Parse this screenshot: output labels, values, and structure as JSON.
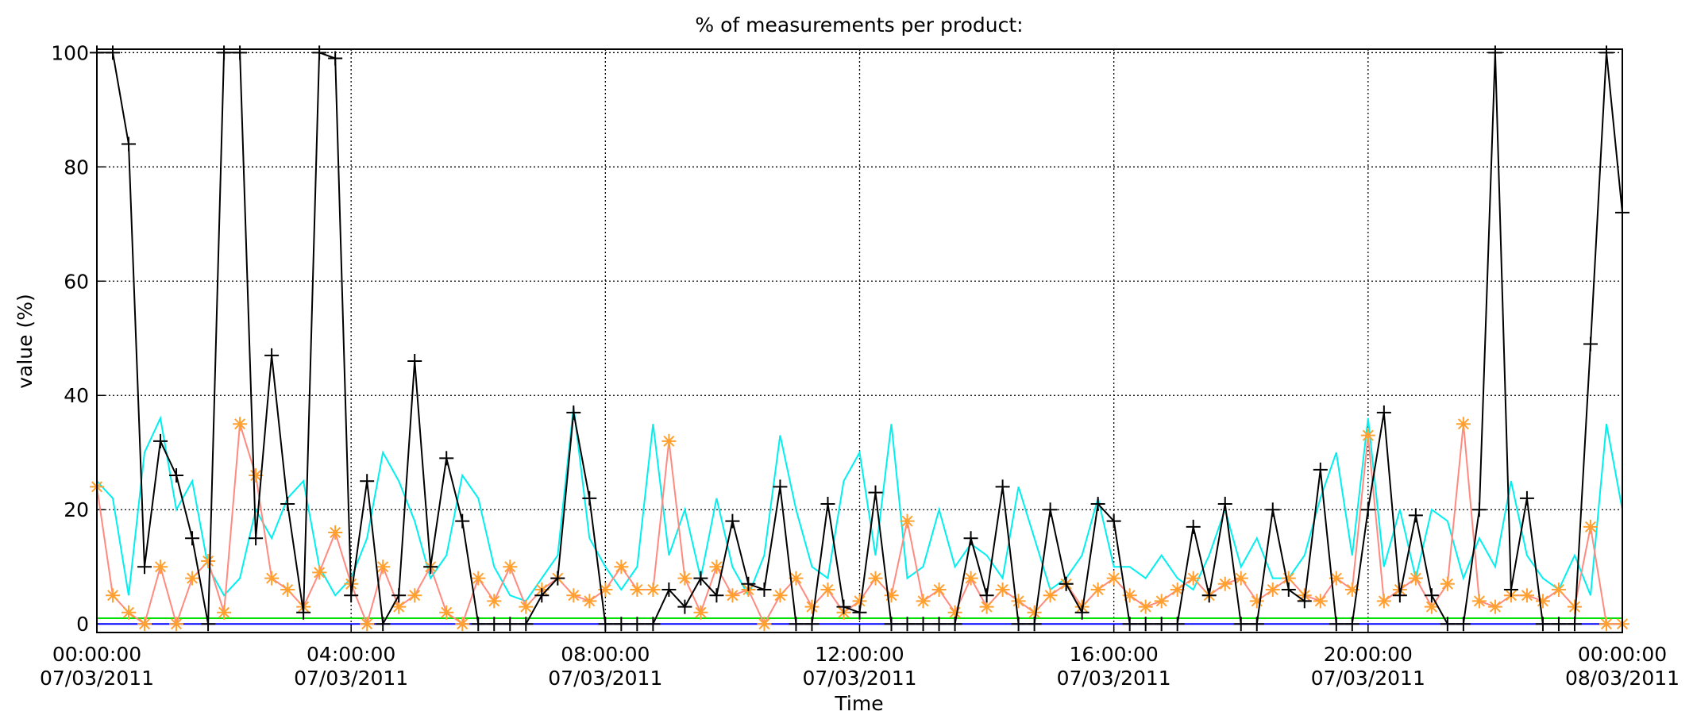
{
  "chart_data": {
    "type": "line",
    "title": "% of measurements per product:",
    "y_label": "value (%)",
    "x_label": "Time",
    "x": [
      0,
      0.25,
      0.5,
      0.75,
      1,
      1.25,
      1.5,
      1.75,
      2,
      2.25,
      2.5,
      2.75,
      3,
      3.25,
      3.5,
      3.75,
      4,
      4.25,
      4.5,
      4.75,
      5,
      5.25,
      5.5,
      5.75,
      6,
      6.25,
      6.5,
      6.75,
      7,
      7.25,
      7.5,
      7.75,
      8,
      8.25,
      8.5,
      8.75,
      9,
      9.25,
      9.5,
      9.75,
      10,
      10.25,
      10.5,
      10.75,
      11,
      11.25,
      11.5,
      11.75,
      12,
      12.25,
      12.5,
      12.75,
      13,
      13.25,
      13.5,
      13.75,
      14,
      14.25,
      14.5,
      14.75,
      15,
      15.25,
      15.5,
      15.75,
      16,
      16.25,
      16.5,
      16.75,
      17,
      17.25,
      17.5,
      17.75,
      18,
      18.25,
      18.5,
      18.75,
      19,
      19.25,
      19.5,
      19.75,
      20,
      20.25,
      20.5,
      20.75,
      21,
      21.25,
      21.5,
      21.75,
      22,
      22.25,
      22.5,
      22.75,
      23,
      23.25,
      23.5,
      23.75,
      24
    ],
    "xlim": [
      0,
      24
    ],
    "xticks": [
      {
        "value": 0,
        "label": "00:00:00\n07/03/2011"
      },
      {
        "value": 4,
        "label": "04:00:00\n07/03/2011"
      },
      {
        "value": 8,
        "label": "08:00:00\n07/03/2011"
      },
      {
        "value": 12,
        "label": "12:00:00\n07/03/2011"
      },
      {
        "value": 16,
        "label": "16:00:00\n07/03/2011"
      },
      {
        "value": 20,
        "label": "20:00:00\n07/03/2011"
      },
      {
        "value": 24,
        "label": "00:00:00\n08/03/2011"
      }
    ],
    "ylim": [
      -1.5,
      100.6
    ],
    "yticks": [
      0,
      20,
      40,
      60,
      80,
      100
    ],
    "grid": true,
    "series": [
      {
        "color": "#00e000",
        "marker": null,
        "values": [
          1,
          1,
          1,
          1,
          1,
          1,
          1,
          1,
          1,
          1,
          1,
          1,
          1,
          1,
          1,
          1,
          1,
          1,
          1,
          1,
          1,
          1,
          1,
          1,
          1,
          1,
          1,
          1,
          1,
          1,
          1,
          1,
          1,
          1,
          1,
          1,
          1,
          1,
          1,
          1,
          1,
          1,
          1,
          1,
          1,
          1,
          1,
          1,
          1,
          1,
          1,
          1,
          1,
          1,
          1,
          1,
          1,
          1,
          1,
          1,
          1,
          1,
          1,
          1,
          1,
          1,
          1,
          1,
          1,
          1,
          1,
          1,
          1,
          1,
          1,
          1,
          1,
          1,
          1,
          1,
          1,
          1,
          1,
          1,
          1,
          1,
          1,
          1,
          1,
          1,
          1,
          1,
          1,
          1,
          1,
          1,
          1
        ]
      },
      {
        "color": "#0000ff",
        "marker": null,
        "values": [
          0,
          0,
          0,
          0,
          0,
          0,
          0,
          0,
          0,
          0,
          0,
          0,
          0,
          0,
          0,
          0,
          0,
          0,
          0,
          0,
          0,
          0,
          0,
          0,
          0,
          0,
          0,
          0,
          0,
          0,
          0,
          0,
          0,
          0,
          0,
          0,
          0,
          0,
          0,
          0,
          0,
          0,
          0,
          0,
          0,
          0,
          0,
          0,
          0,
          0,
          0,
          0,
          0,
          0,
          0,
          0,
          0,
          0,
          0,
          0,
          0,
          0,
          0,
          0,
          0,
          0,
          0,
          0,
          0,
          0,
          0,
          0,
          0,
          0,
          0,
          0,
          0,
          0,
          0,
          0,
          0,
          0,
          0,
          0,
          0,
          0,
          0,
          0,
          0,
          0,
          0,
          0,
          0,
          0,
          0,
          0,
          0
        ]
      },
      {
        "color": "#00f0f0",
        "marker": null,
        "values": [
          25,
          22,
          5,
          30,
          36,
          20,
          25,
          10,
          5,
          8,
          20,
          15,
          22,
          25,
          10,
          5,
          8,
          15,
          30,
          25,
          18,
          8,
          12,
          26,
          22,
          10,
          5,
          4,
          8,
          12,
          38,
          15,
          10,
          6,
          10,
          35,
          12,
          20,
          8,
          22,
          10,
          5,
          12,
          33,
          20,
          10,
          8,
          25,
          30,
          12,
          35,
          8,
          10,
          20,
          10,
          14,
          12,
          8,
          24,
          15,
          6,
          8,
          12,
          22,
          10,
          10,
          8,
          12,
          8,
          6,
          12,
          20,
          10,
          15,
          8,
          8,
          12,
          22,
          30,
          12,
          36,
          10,
          20,
          8,
          20,
          18,
          8,
          15,
          10,
          25,
          12,
          8,
          6,
          12,
          5,
          35,
          20
        ]
      },
      {
        "color": "#ff8a80",
        "marker": "asterisk",
        "marker_color": "#ffa030",
        "values": [
          24,
          5,
          2,
          0,
          10,
          0,
          8,
          11,
          2,
          35,
          26,
          8,
          6,
          3,
          9,
          16,
          7,
          0,
          10,
          3,
          5,
          10,
          2,
          0,
          8,
          4,
          10,
          3,
          6,
          8,
          5,
          4,
          6,
          10,
          6,
          6,
          32,
          8,
          2,
          10,
          5,
          6,
          0,
          5,
          8,
          3,
          6,
          2,
          4,
          8,
          5,
          18,
          4,
          6,
          2,
          8,
          3,
          6,
          4,
          2,
          5,
          7,
          3,
          6,
          8,
          5,
          3,
          4,
          6,
          8,
          5,
          7,
          8,
          4,
          6,
          8,
          5,
          4,
          8,
          6,
          33,
          4,
          6,
          8,
          3,
          7,
          35,
          4,
          3,
          5,
          5,
          4,
          6,
          3,
          17,
          0,
          0
        ]
      },
      {
        "color": "#000000",
        "marker": "plus",
        "marker_color": "#000000",
        "values": [
          100,
          100,
          84,
          10,
          32,
          26,
          15,
          0,
          100,
          100,
          15,
          47,
          21,
          2,
          100,
          99,
          5,
          25,
          0,
          5,
          46,
          10,
          29,
          18,
          0,
          0,
          0,
          0,
          5,
          8,
          37,
          22,
          0,
          0,
          0,
          0,
          6,
          3,
          8,
          5,
          18,
          7,
          6,
          24,
          0,
          0,
          21,
          3,
          2,
          23,
          0,
          0,
          0,
          0,
          0,
          15,
          5,
          24,
          0,
          0,
          20,
          7,
          2,
          21,
          18,
          0,
          0,
          0,
          0,
          17,
          5,
          21,
          0,
          0,
          20,
          6,
          4,
          27,
          0,
          0,
          20,
          37,
          5,
          19,
          5,
          0,
          0,
          20,
          100,
          6,
          22,
          0,
          0,
          0,
          49,
          100,
          72
        ]
      }
    ]
  }
}
